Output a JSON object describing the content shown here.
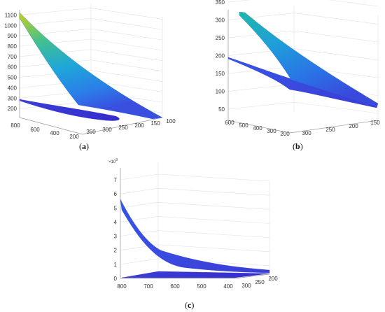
{
  "colors": {
    "surface_low": "#3b2fd8",
    "surface_mid": "#2a8fe8",
    "surface_teal": "#1fb8b0",
    "surface_high": "#c8d01a",
    "grid": "#e2e2e2",
    "axis": "#9a9a9a"
  },
  "chart_data": [
    {
      "type": "surface",
      "panel": "a",
      "caption": {
        "open": "(",
        "letter": "a",
        "close": ")"
      },
      "z_ticks": [
        "100",
        "200",
        "300",
        "400",
        "500",
        "600",
        "700",
        "800",
        "900",
        "1000",
        "1100"
      ],
      "x_ticks": [
        "800",
        "600",
        "400",
        "200"
      ],
      "y_ticks": [
        "350",
        "300",
        "250",
        "200",
        "150",
        "100"
      ],
      "zlim": [
        100,
        1150
      ],
      "series": [
        {
          "role": "upper-surface",
          "z_max": 1130,
          "z_min": 120
        },
        {
          "role": "lower-surface",
          "z_max": 280,
          "z_min": 150
        }
      ]
    },
    {
      "type": "surface",
      "panel": "b",
      "caption": {
        "open": "(",
        "letter": "b",
        "close": ")"
      },
      "z_ticks": [
        "50",
        "100",
        "150",
        "200",
        "250",
        "300",
        "350"
      ],
      "x_ticks": [
        "600",
        "500",
        "400",
        "300",
        "200"
      ],
      "y_ticks": [
        "300",
        "250",
        "200",
        "150"
      ],
      "zlim": [
        50,
        360
      ],
      "series": [
        {
          "role": "upper-surface",
          "z_max": 355,
          "z_min": 65
        },
        {
          "role": "lower-surface",
          "z_max": 215,
          "z_min": 55
        }
      ]
    },
    {
      "type": "surface",
      "panel": "c",
      "caption": {
        "open": "(",
        "letter": "c",
        "close": ")"
      },
      "exponent": {
        "base": "×10",
        "power": "9"
      },
      "z_ticks": [
        "0",
        "1",
        "2",
        "3",
        "4",
        "5",
        "6",
        "7"
      ],
      "x_ticks": [
        "800",
        "700",
        "600",
        "500",
        "400"
      ],
      "y_ticks": [
        "300",
        "250",
        "200"
      ],
      "zlim": [
        0,
        7
      ],
      "series": [
        {
          "role": "upper-surface",
          "z_max": 5.1,
          "z_min": 0.2
        },
        {
          "role": "lower-surface",
          "z_max": 0.3,
          "z_min": 0.05
        }
      ]
    }
  ]
}
